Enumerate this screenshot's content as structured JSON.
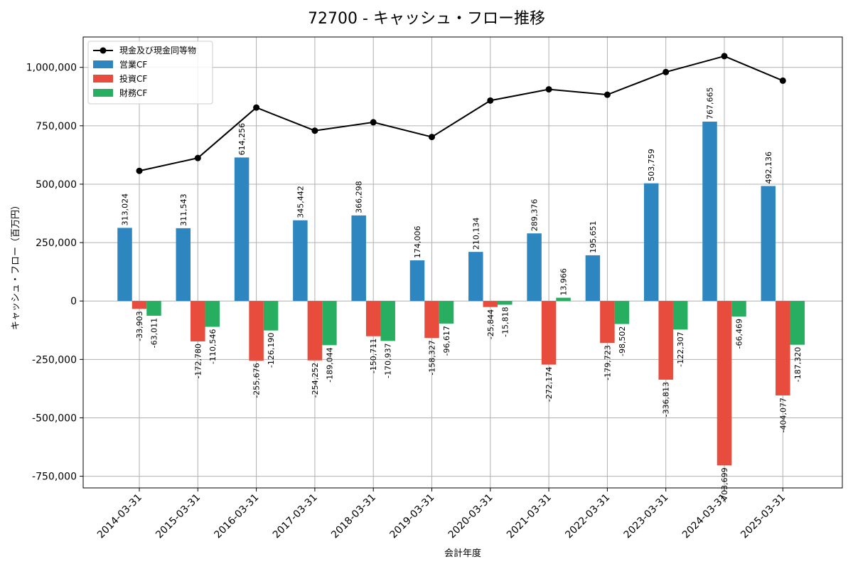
{
  "chart_data": {
    "type": "bar",
    "title": "72700 - キャッシュ・フロー推移",
    "xlabel": "会計年度",
    "ylabel": "キャッシュ・フロー（百万円）",
    "categories": [
      "2014-03-31",
      "2015-03-31",
      "2016-03-31",
      "2017-03-31",
      "2018-03-31",
      "2019-03-31",
      "2020-03-31",
      "2021-03-31",
      "2022-03-31",
      "2023-03-31",
      "2024-03-31",
      "2025-03-31"
    ],
    "ylim": [
      -800000,
      1130000
    ],
    "yticks": [
      -750000,
      -500000,
      -250000,
      0,
      250000,
      500000,
      750000,
      1000000
    ],
    "ytick_labels": [
      "-750,000",
      "-500,000",
      "-250,000",
      "0",
      "250,000",
      "500,000",
      "750,000",
      "1,000,000"
    ],
    "grid": true,
    "legend_position": "top-left",
    "series": [
      {
        "name": "営業CF",
        "kind": "bar",
        "color": "#2e86c1",
        "values": [
          313024,
          311543,
          614256,
          345442,
          366298,
          174006,
          210134,
          289376,
          195651,
          503759,
          767665,
          492136
        ],
        "labels": [
          "313,024",
          "311,543",
          "614,256",
          "345,442",
          "366,298",
          "174,006",
          "210,134",
          "289,376",
          "195,651",
          "503,759",
          "767,665",
          "492,136"
        ]
      },
      {
        "name": "投資CF",
        "kind": "bar",
        "color": "#e74c3c",
        "values": [
          -33903,
          -172780,
          -255676,
          -254252,
          -150711,
          -158327,
          -25844,
          -272174,
          -179723,
          -336813,
          -703699,
          -404077
        ],
        "labels": [
          "-33,903",
          "-172,780",
          "-255,676",
          "-254,252",
          "-150,711",
          "-158,327",
          "-25,844",
          "-272,174",
          "-179,723",
          "-336,813",
          "-703,699",
          "-404,077"
        ]
      },
      {
        "name": "財務CF",
        "kind": "bar",
        "color": "#27ae60",
        "values": [
          -63011,
          -110546,
          -126190,
          -189044,
          -170937,
          -96617,
          -15818,
          13966,
          -98502,
          -122307,
          -66469,
          -187320
        ],
        "labels": [
          "-63,011",
          "-110,546",
          "-126,190",
          "-189,044",
          "-170,937",
          "-96,617",
          "-15,818",
          "13,966",
          "-98,502",
          "-122,307",
          "-66,469",
          "-187,320"
        ]
      }
    ],
    "line": {
      "name": "現金及び現金同等物",
      "color": "#000000",
      "values": [
        557000,
        612000,
        828000,
        729000,
        765000,
        702000,
        858000,
        906000,
        883000,
        980000,
        1048000,
        943000
      ]
    }
  }
}
